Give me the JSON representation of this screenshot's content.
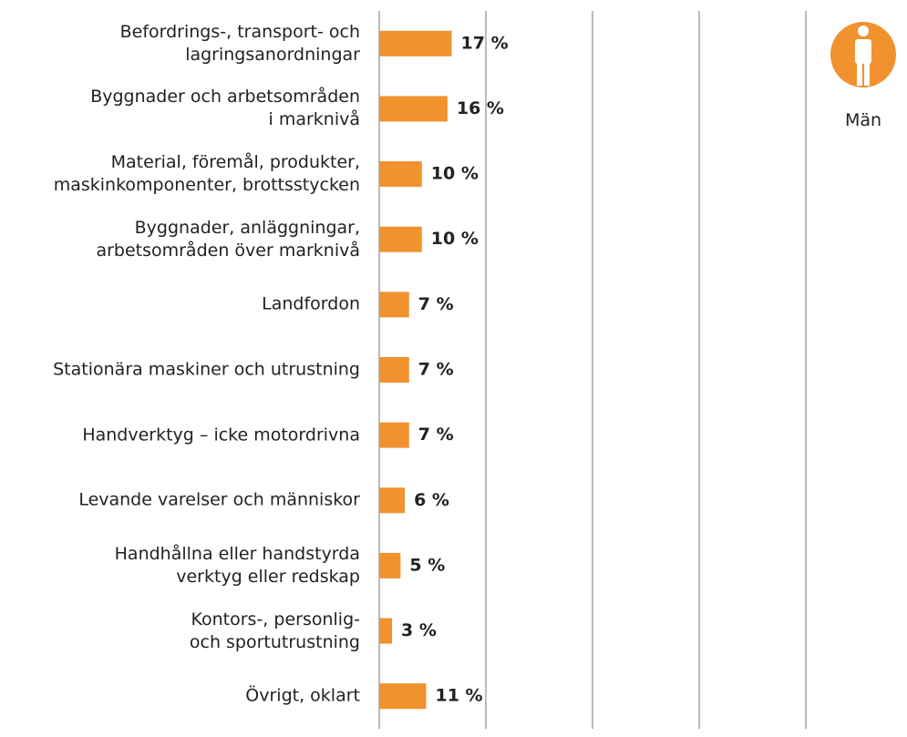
{
  "chart_data": {
    "type": "barh",
    "categories": [
      "Befordrings-, transport- och\nlagringsanordningar",
      "Byggnader och arbetsområden\ni marknivå",
      "Material, föremål, produkter,\nmaskinkomponenter, brottsstycken",
      "Byggnader, anläggningar,\narbetsområden över marknivå",
      "Landfordon",
      "Stationära maskiner och utrustning",
      "Handverktyg – icke motordrivna",
      "Levande varelser och människor",
      "Handhållna eller handstyrda\nverktyg eller redskap",
      "Kontors-, personlig-\noch sportutrustning",
      "Övrigt, oklart"
    ],
    "series": [
      {
        "name": "Män",
        "color": "#f0922e",
        "values": [
          17,
          16,
          10,
          10,
          7,
          7,
          7,
          6,
          5,
          3,
          11
        ],
        "value_labels": [
          "17 %",
          "16 %",
          "10 %",
          "10 %",
          "7 %",
          "7 %",
          "7 %",
          "6 %",
          "5 %",
          "3 %",
          "11 %"
        ]
      }
    ],
    "xlim": [
      0,
      100
    ],
    "xticks": [
      0,
      25,
      50,
      75,
      100
    ],
    "grid": true
  }
}
